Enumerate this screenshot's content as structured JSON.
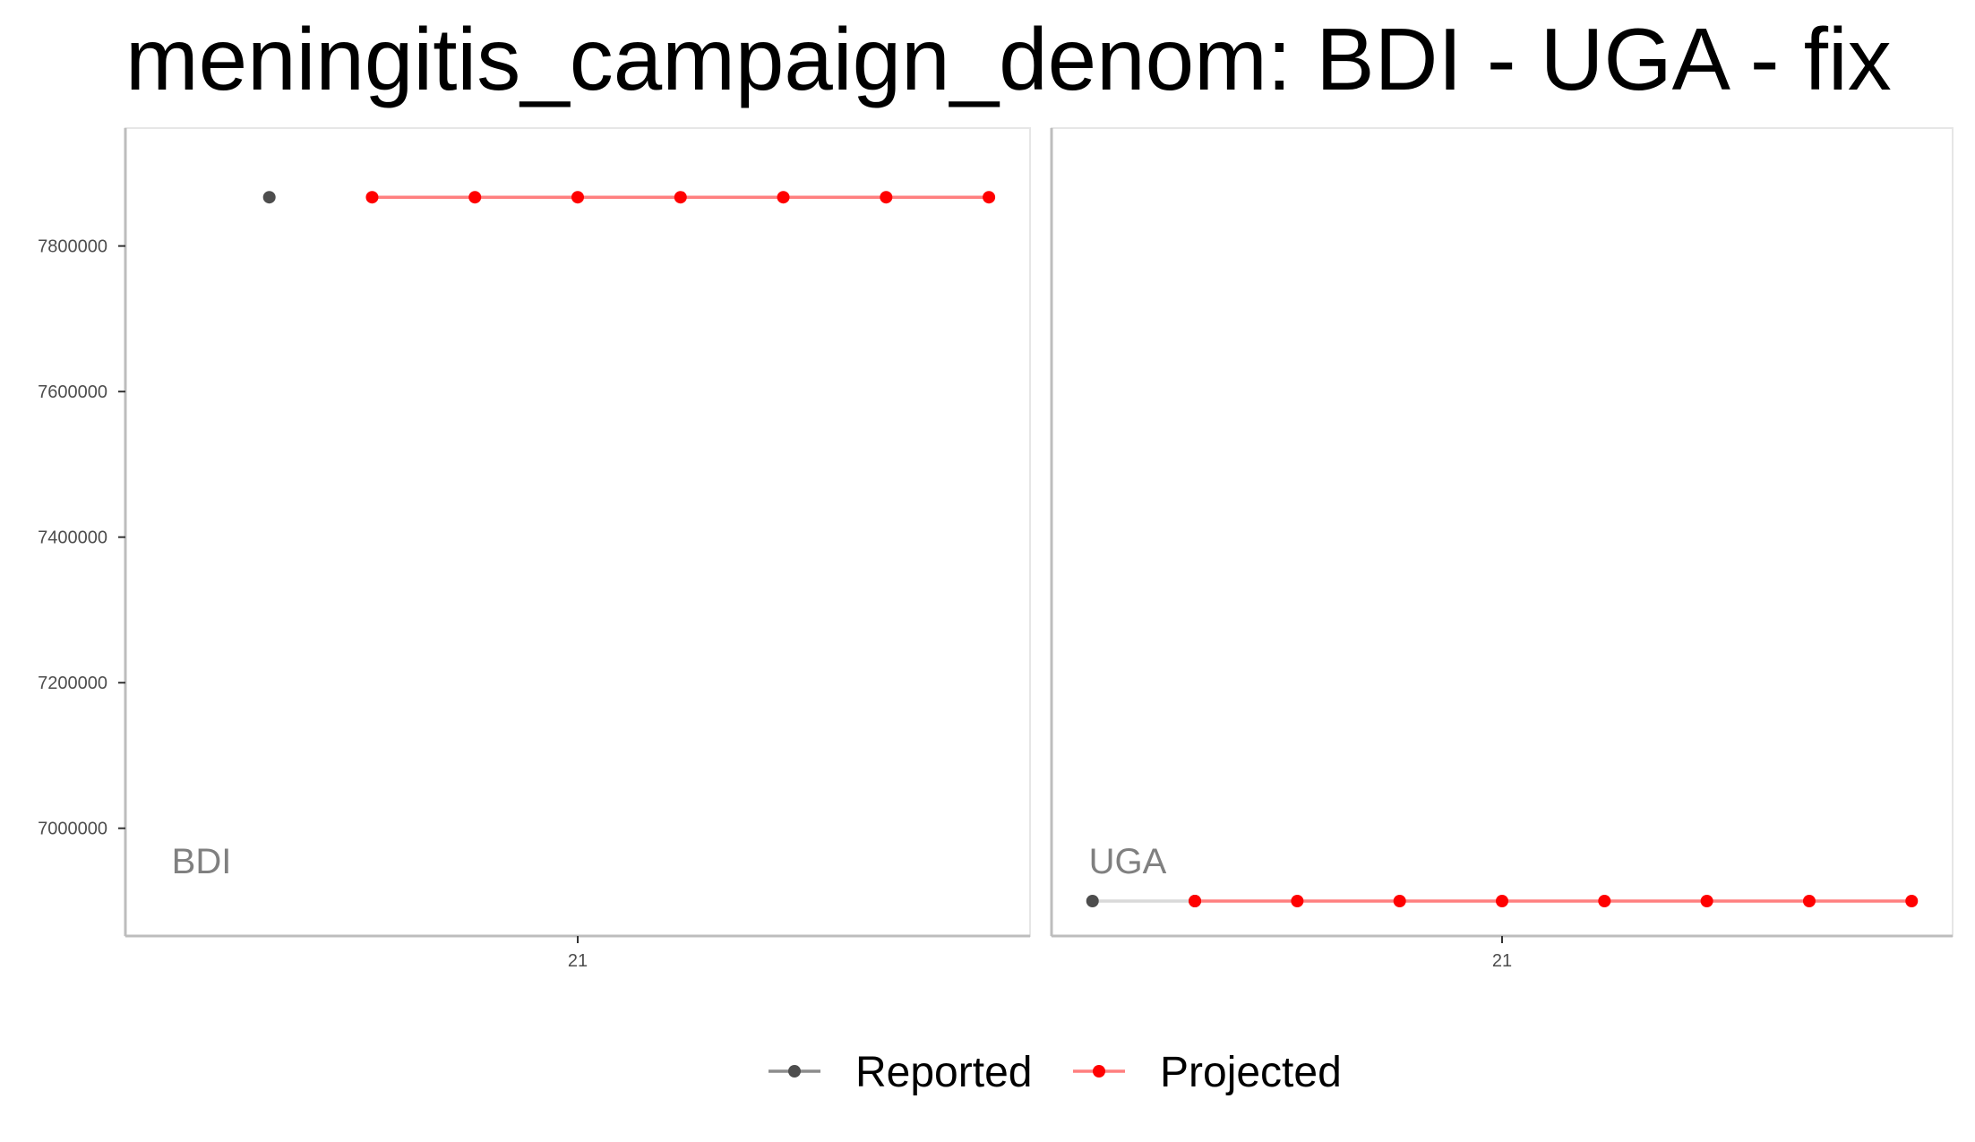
{
  "title": "meningitis_campaign_denom: BDI - UGA - fix",
  "colors": {
    "reported": "#4d4d4d",
    "projected": "#ff0000",
    "projected_line": "#ff7f7f",
    "reported_line": "#d9d9d9"
  },
  "legend": [
    {
      "label": "Reported",
      "key": "reported"
    },
    {
      "label": "Projected",
      "key": "projected"
    }
  ],
  "chart_data": [
    {
      "type": "line",
      "facet": "BDI",
      "xlim": [
        16.6,
        25.4
      ],
      "ylim": [
        6852000,
        7962000
      ],
      "xticks": [
        21
      ],
      "yticks": [
        7000000,
        7200000,
        7400000,
        7600000,
        7800000
      ],
      "series": [
        {
          "name": "Reported",
          "key": "reported",
          "points": [
            [
              18,
              7867000
            ]
          ]
        },
        {
          "name": "Projected",
          "key": "projected",
          "points": [
            [
              19,
              7867000
            ],
            [
              20,
              7867000
            ],
            [
              21,
              7867000
            ],
            [
              22,
              7867000
            ],
            [
              23,
              7867000
            ],
            [
              24,
              7867000
            ],
            [
              25,
              7867000
            ]
          ]
        }
      ]
    },
    {
      "type": "line",
      "facet": "UGA",
      "xlim": [
        16.6,
        25.4
      ],
      "ylim": [
        6852000,
        7962000
      ],
      "xticks": [
        21
      ],
      "yticks": [],
      "series": [
        {
          "name": "Reported",
          "key": "reported",
          "points": [
            [
              17,
              6900000
            ],
            [
              18,
              6900000
            ]
          ]
        },
        {
          "name": "Projected",
          "key": "projected",
          "points": [
            [
              18,
              6900000
            ],
            [
              19,
              6900000
            ],
            [
              20,
              6900000
            ],
            [
              21,
              6900000
            ],
            [
              22,
              6900000
            ],
            [
              23,
              6900000
            ],
            [
              24,
              6900000
            ],
            [
              25,
              6900000
            ]
          ]
        }
      ]
    }
  ]
}
